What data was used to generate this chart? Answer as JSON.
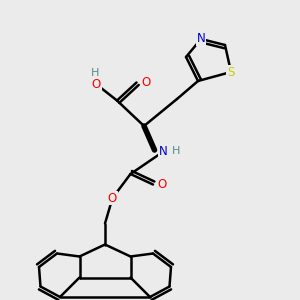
{
  "bg_color": "#ebebeb",
  "atom_colors": {
    "C": "#000000",
    "H": "#5a8a8a",
    "O": "#ff0000",
    "N": "#0000cc",
    "S": "#cccc00"
  },
  "bond_color": "#000000",
  "bond_width": 1.8
}
